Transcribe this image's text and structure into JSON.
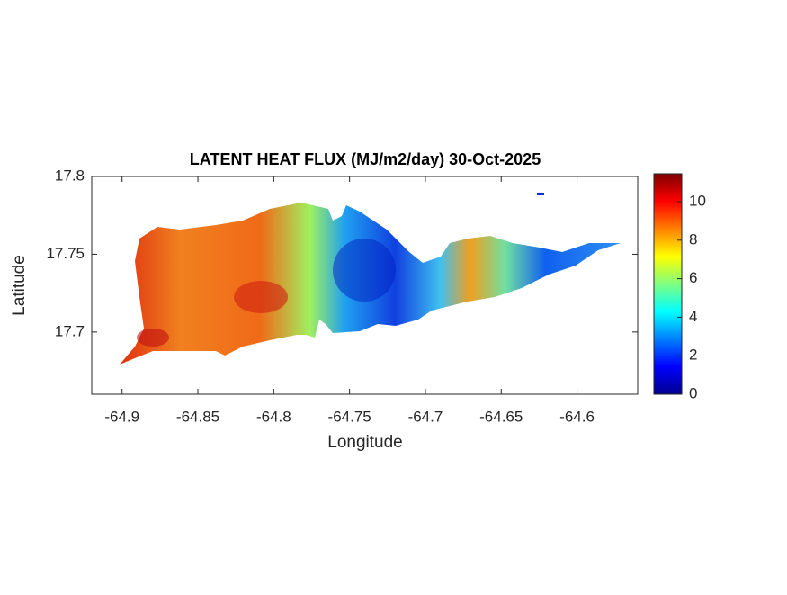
{
  "chart_data": {
    "type": "map",
    "title": "LATENT HEAT FLUX (MJ/m2/day) 30-Oct-2025",
    "xlabel": "Longitude",
    "ylabel": "Latitude",
    "xlim": [
      -64.92,
      -64.56
    ],
    "xticks": [
      -64.9,
      -64.85,
      -64.8,
      -64.75,
      -64.7,
      -64.65,
      -64.6
    ],
    "ylim": [
      17.66,
      17.8
    ],
    "yticks": [
      17.7,
      17.75,
      17.8
    ],
    "colormap": "jet",
    "clim": [
      0,
      11.45
    ],
    "cticks": [
      0,
      2,
      4,
      6,
      8,
      10
    ]
  }
}
